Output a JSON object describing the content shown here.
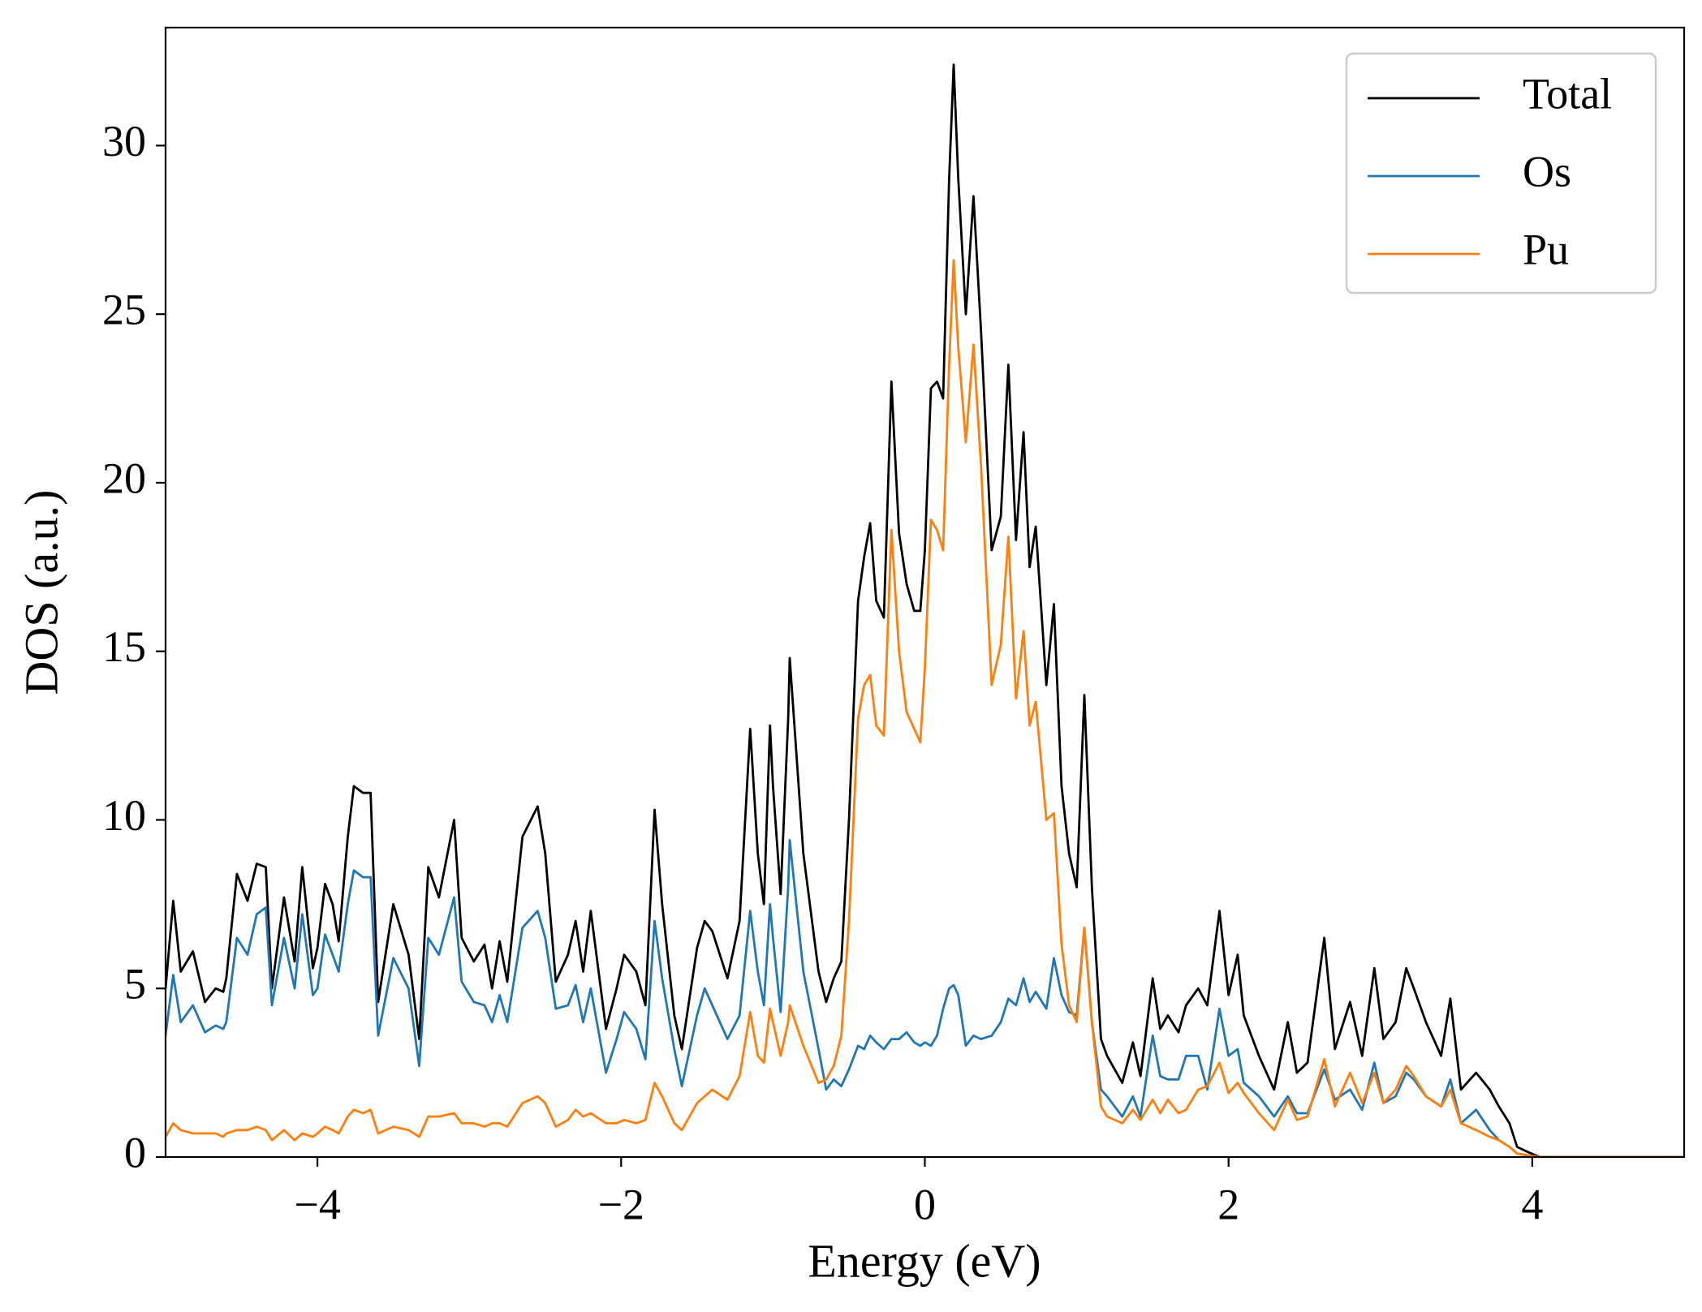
{
  "chart_data": {
    "type": "line",
    "xlabel": "Energy (eV)",
    "ylabel": "DOS (a.u.)",
    "xlim": [
      -5,
      5
    ],
    "ylim": [
      0,
      33.5
    ],
    "xticks": [
      {
        "value": -4,
        "label": "−4"
      },
      {
        "value": -2,
        "label": "−2"
      },
      0,
      2,
      4
    ],
    "yticks": [
      0,
      5,
      10,
      15,
      20,
      25,
      30
    ],
    "legend": "upper right",
    "x": [
      -5.0,
      -4.95,
      -4.9,
      -4.82,
      -4.74,
      -4.67,
      -4.62,
      -4.6,
      -4.53,
      -4.46,
      -4.4,
      -4.34,
      -4.3,
      -4.22,
      -4.15,
      -4.1,
      -4.03,
      -4.0,
      -3.95,
      -3.9,
      -3.86,
      -3.8,
      -3.76,
      -3.7,
      -3.65,
      -3.6,
      -3.5,
      -3.4,
      -3.33,
      -3.27,
      -3.2,
      -3.1,
      -3.05,
      -2.97,
      -2.9,
      -2.85,
      -2.8,
      -2.75,
      -2.65,
      -2.55,
      -2.5,
      -2.43,
      -2.35,
      -2.3,
      -2.25,
      -2.2,
      -2.1,
      -2.03,
      -1.98,
      -1.9,
      -1.84,
      -1.78,
      -1.73,
      -1.65,
      -1.6,
      -1.5,
      -1.45,
      -1.4,
      -1.3,
      -1.22,
      -1.15,
      -1.1,
      -1.06,
      -1.02,
      -1.0,
      -0.95,
      -0.9,
      -0.89,
      -0.8,
      -0.7,
      -0.65,
      -0.6,
      -0.55,
      -0.5,
      -0.44,
      -0.4,
      -0.36,
      -0.32,
      -0.27,
      -0.22,
      -0.17,
      -0.12,
      -0.07,
      -0.03,
      0.0,
      0.04,
      0.08,
      0.12,
      0.16,
      0.19,
      0.22,
      0.27,
      0.32,
      0.37,
      0.44,
      0.5,
      0.55,
      0.6,
      0.65,
      0.69,
      0.73,
      0.8,
      0.85,
      0.9,
      0.95,
      1.0,
      1.05,
      1.1,
      1.16,
      1.2,
      1.3,
      1.37,
      1.42,
      1.5,
      1.55,
      1.6,
      1.67,
      1.72,
      1.8,
      1.86,
      1.94,
      2.0,
      2.06,
      2.1,
      2.2,
      2.3,
      2.39,
      2.45,
      2.52,
      2.63,
      2.7,
      2.8,
      2.88,
      2.96,
      3.02,
      3.1,
      3.17,
      3.22,
      3.3,
      3.4,
      3.46,
      3.53,
      3.63,
      3.72,
      3.78,
      3.85,
      3.9,
      3.97,
      4.05,
      5.0
    ],
    "series": [
      {
        "name": "Total",
        "color": "#000000",
        "values": [
          5.0,
          7.6,
          5.5,
          6.1,
          4.6,
          5.0,
          4.9,
          5.3,
          8.4,
          7.6,
          8.7,
          8.6,
          5.0,
          7.7,
          5.8,
          8.6,
          5.6,
          6.2,
          8.1,
          7.5,
          6.4,
          9.5,
          11.0,
          10.8,
          10.8,
          4.6,
          7.5,
          6.0,
          3.5,
          8.6,
          7.7,
          10.0,
          6.5,
          5.8,
          6.3,
          5.0,
          6.4,
          5.2,
          9.5,
          10.4,
          9.0,
          5.2,
          6.0,
          7.0,
          5.5,
          7.3,
          3.8,
          5.0,
          6.0,
          5.5,
          4.5,
          10.3,
          7.5,
          4.2,
          3.2,
          6.2,
          7.0,
          6.7,
          5.3,
          7.0,
          12.7,
          9.0,
          7.5,
          12.8,
          11.0,
          7.8,
          13.0,
          14.8,
          9.0,
          5.5,
          4.6,
          5.3,
          5.8,
          10.0,
          16.5,
          17.8,
          18.8,
          16.5,
          16.0,
          23.0,
          18.5,
          17.0,
          16.2,
          16.2,
          18.0,
          22.8,
          23.0,
          22.5,
          29.0,
          32.4,
          29.0,
          25.0,
          28.5,
          24.5,
          18.0,
          19.0,
          23.5,
          18.3,
          21.5,
          17.5,
          18.7,
          14.0,
          16.4,
          11.0,
          9.0,
          8.0,
          13.7,
          8.0,
          3.5,
          3.0,
          2.2,
          3.4,
          2.4,
          5.3,
          3.8,
          4.2,
          3.7,
          4.5,
          5.0,
          4.5,
          7.3,
          4.8,
          6.0,
          4.2,
          3.0,
          2.0,
          4.0,
          2.5,
          2.8,
          6.5,
          3.2,
          4.6,
          3.0,
          5.6,
          3.5,
          4.0,
          5.6,
          5.0,
          4.0,
          3.0,
          4.7,
          2.0,
          2.5,
          2.0,
          1.5,
          1.0,
          0.3,
          0.15,
          0,
          0
        ]
      },
      {
        "name": "Os",
        "color": "#1f77b4",
        "values": [
          3.6,
          5.4,
          4.0,
          4.5,
          3.7,
          3.9,
          3.8,
          4.0,
          6.5,
          6.0,
          7.2,
          7.4,
          4.5,
          6.5,
          5.0,
          7.2,
          4.8,
          5.0,
          6.6,
          6.0,
          5.5,
          7.5,
          8.5,
          8.3,
          8.3,
          3.6,
          5.9,
          5.0,
          2.7,
          6.5,
          6.0,
          7.7,
          5.2,
          4.6,
          4.5,
          4.0,
          4.8,
          4.0,
          6.8,
          7.3,
          6.5,
          4.4,
          4.5,
          5.1,
          4.0,
          5.0,
          2.5,
          3.5,
          4.3,
          3.8,
          2.9,
          7.0,
          5.3,
          3.2,
          2.1,
          4.2,
          5.0,
          4.5,
          3.5,
          4.2,
          7.3,
          5.5,
          4.5,
          7.5,
          6.5,
          4.3,
          8.0,
          9.4,
          5.5,
          3.2,
          2.0,
          2.3,
          2.1,
          2.6,
          3.3,
          3.2,
          3.6,
          3.4,
          3.2,
          3.5,
          3.5,
          3.7,
          3.4,
          3.3,
          3.4,
          3.3,
          3.6,
          4.4,
          5.0,
          5.1,
          4.8,
          3.3,
          3.6,
          3.5,
          3.6,
          4.0,
          4.7,
          4.5,
          5.3,
          4.6,
          4.9,
          4.4,
          5.9,
          4.8,
          4.3,
          4.2,
          6.8,
          4.0,
          2.0,
          1.8,
          1.2,
          1.8,
          1.2,
          3.6,
          2.4,
          2.3,
          2.3,
          3.0,
          3.0,
          2.0,
          4.4,
          3.0,
          3.2,
          2.2,
          1.8,
          1.2,
          1.8,
          1.3,
          1.3,
          2.6,
          1.7,
          2.0,
          1.4,
          2.8,
          1.6,
          1.8,
          2.5,
          2.3,
          1.8,
          1.5,
          2.3,
          1.0,
          1.4,
          0.8,
          0.5,
          0.3,
          0.1,
          0.05,
          0,
          0
        ]
      },
      {
        "name": "Pu",
        "color": "#ff7f0e",
        "values": [
          0.6,
          1.0,
          0.8,
          0.7,
          0.7,
          0.7,
          0.6,
          0.7,
          0.8,
          0.8,
          0.9,
          0.8,
          0.5,
          0.8,
          0.5,
          0.7,
          0.6,
          0.7,
          0.9,
          0.8,
          0.7,
          1.2,
          1.4,
          1.3,
          1.4,
          0.7,
          0.9,
          0.8,
          0.6,
          1.2,
          1.2,
          1.3,
          1.0,
          1.0,
          0.9,
          1.0,
          1.0,
          0.9,
          1.6,
          1.8,
          1.6,
          0.9,
          1.1,
          1.4,
          1.2,
          1.3,
          1.0,
          1.0,
          1.1,
          1.0,
          1.1,
          2.2,
          1.8,
          1.0,
          0.8,
          1.6,
          1.8,
          2.0,
          1.7,
          2.4,
          4.3,
          3.0,
          2.8,
          4.4,
          4.0,
          3.0,
          4.0,
          4.5,
          3.3,
          2.2,
          2.3,
          2.7,
          3.6,
          7.0,
          13.0,
          14.0,
          14.3,
          12.8,
          12.5,
          18.6,
          15.0,
          13.2,
          12.7,
          12.3,
          14.5,
          18.9,
          18.6,
          18.0,
          23.5,
          26.6,
          24.0,
          21.2,
          24.1,
          20.5,
          14.0,
          15.2,
          18.4,
          13.6,
          15.6,
          12.8,
          13.5,
          10.0,
          10.2,
          6.3,
          4.5,
          4.0,
          6.8,
          4.0,
          1.5,
          1.2,
          1.0,
          1.4,
          1.1,
          1.7,
          1.3,
          1.7,
          1.3,
          1.4,
          2.0,
          2.1,
          2.8,
          1.9,
          2.2,
          1.9,
          1.3,
          0.8,
          1.7,
          1.1,
          1.2,
          2.9,
          1.5,
          2.5,
          1.6,
          2.5,
          1.6,
          2.0,
          2.7,
          2.4,
          1.8,
          1.5,
          2.0,
          1.0,
          0.8,
          0.6,
          0.5,
          0.3,
          0.1,
          0.05,
          0,
          0
        ]
      }
    ]
  }
}
